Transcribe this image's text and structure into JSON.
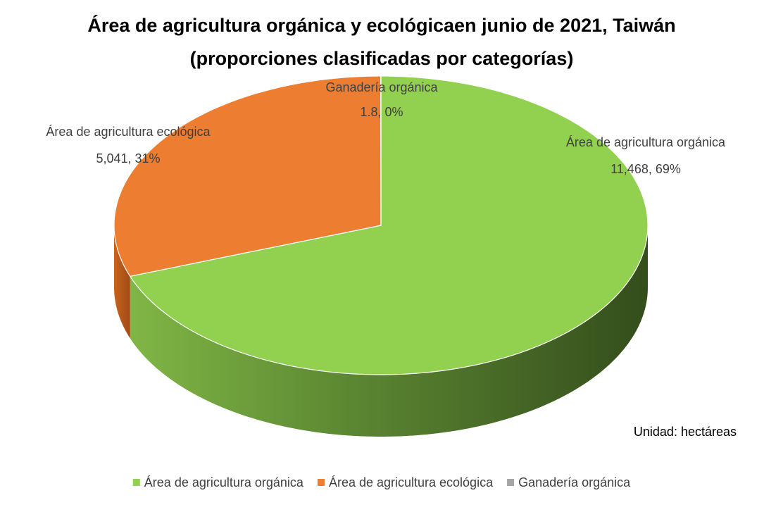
{
  "chart_data": {
    "type": "pie3d",
    "title": "Área de agricultura orgánica y ecológicaen junio de 2021, Taiwán",
    "subtitle": "(proporciones clasificadas por categorías)",
    "categories": [
      "Área de agricultura orgánica",
      "Área de agricultura ecológica",
      "Ganadería orgánica"
    ],
    "values": [
      11468,
      5041,
      1.8
    ],
    "value_labels": [
      "11,468, 69%",
      "5,041, 31%",
      "1.8, 0%"
    ],
    "colors": [
      "#92d050",
      "#ed7d31",
      "#a5a5a5"
    ],
    "annotation": "Unidad: hectáreas",
    "legend": "bottom"
  }
}
